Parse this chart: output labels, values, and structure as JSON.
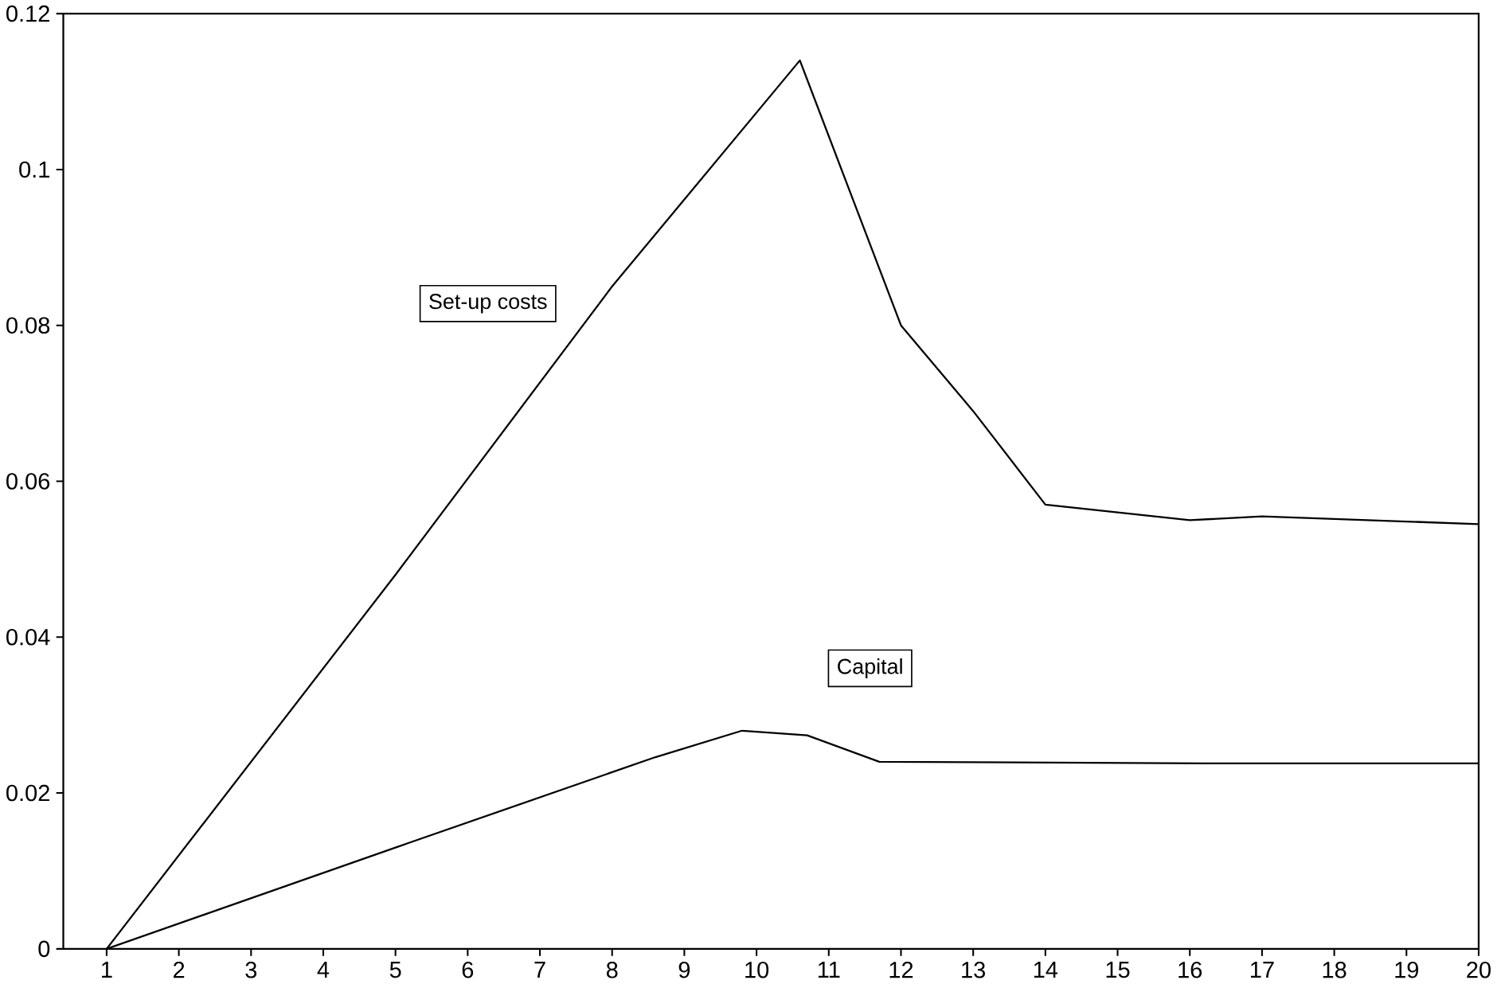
{
  "chart_data": {
    "type": "line",
    "series": [
      {
        "name": "Set-up costs",
        "color": "#000000",
        "x": [
          1,
          5,
          8,
          10.6,
          12,
          13,
          14,
          16,
          17,
          20
        ],
        "values": [
          0,
          0.048,
          0.085,
          0.114,
          0.08,
          0.069,
          0.057,
          0.055,
          0.0555,
          0.0545
        ]
      },
      {
        "name": "Capital",
        "color": "#000000",
        "x": [
          1,
          5,
          8.6,
          9.8,
          10.7,
          11.7,
          16.2,
          20
        ],
        "values": [
          0,
          0.013,
          0.0246,
          0.028,
          0.0274,
          0.024,
          0.0238,
          0.0238
        ]
      }
    ],
    "xlim": [
      0.4,
      20
    ],
    "ylim": [
      0,
      0.12
    ],
    "xticks": [
      1,
      2,
      3,
      4,
      5,
      6,
      7,
      8,
      9,
      10,
      11,
      12,
      13,
      14,
      15,
      16,
      17,
      18,
      19,
      20
    ],
    "yticks": [
      0,
      0.02,
      0.04,
      0.06,
      0.08,
      0.1,
      0.12
    ],
    "grid": false,
    "marker": "none",
    "line_style": "solid"
  }
}
